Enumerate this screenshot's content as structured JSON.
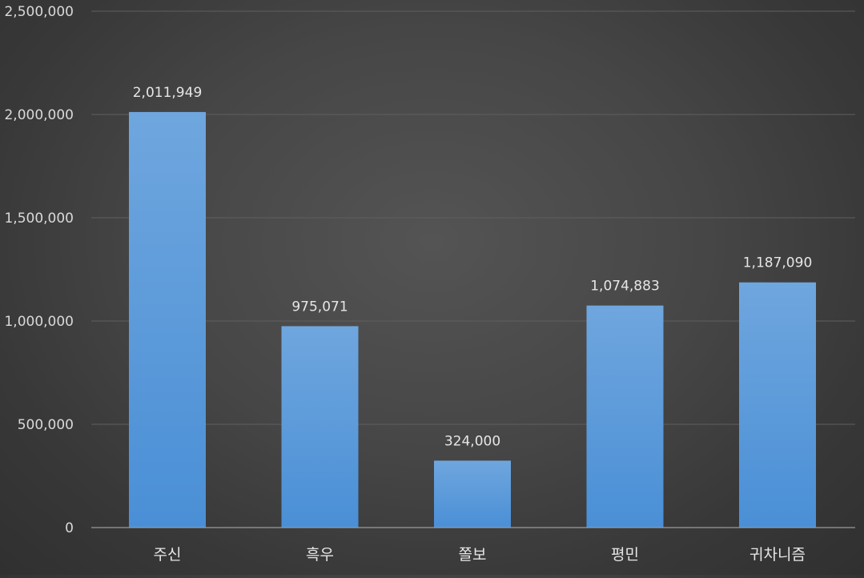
{
  "chart_data": {
    "type": "bar",
    "title": "",
    "xlabel": "",
    "ylabel": "",
    "categories": [
      "주신",
      "흑우",
      "쫄보",
      "평민",
      "귀차니즘"
    ],
    "values": [
      2011949,
      975071,
      324000,
      1074883,
      1187090
    ],
    "value_labels": [
      "2,011,949",
      "975,071",
      "324,000",
      "1,074,883",
      "1,187,090"
    ],
    "ylim": [
      0,
      2500000
    ],
    "yticks": [
      0,
      500000,
      1000000,
      1500000,
      2000000,
      2500000
    ],
    "ytick_labels": [
      "0",
      "500,000",
      "1,000,000",
      "1,500,000",
      "2,000,000",
      "2,500,000"
    ],
    "grid": true,
    "legend": "none",
    "colors": {
      "bar_top": "#6fa6de",
      "bar_bottom": "#4a8fd6",
      "background": "#444444",
      "gridline": "#5f5f5f",
      "text": "#d9d9d9"
    }
  }
}
